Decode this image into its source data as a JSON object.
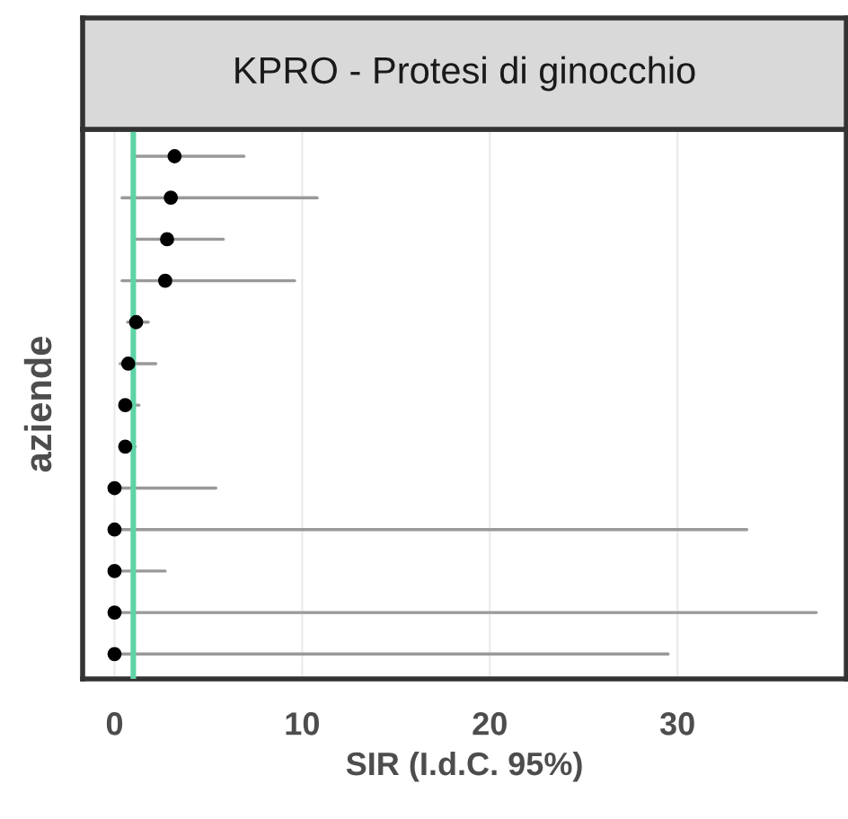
{
  "chart_data": {
    "type": "scatter",
    "orientation": "horizontal",
    "title": "KPRO - Protesi di ginocchio",
    "xlabel": "SIR (I.d.C. 95%)",
    "ylabel": "aziende",
    "categories": [
      null,
      null,
      null,
      null,
      null,
      null,
      null,
      null,
      null,
      null,
      null,
      null,
      null
    ],
    "values": [
      3.2,
      3.0,
      2.8,
      2.7,
      1.15,
      0.73,
      0.57,
      0.57,
      0,
      0,
      0,
      0,
      0
    ],
    "errors": [
      [
        1.1,
        6.9
      ],
      [
        0.4,
        10.8
      ],
      [
        1.1,
        5.8
      ],
      [
        0.4,
        9.6
      ],
      [
        0.7,
        1.8
      ],
      [
        0.3,
        2.2
      ],
      [
        0.3,
        1.3
      ],
      [
        0.3,
        1.1
      ],
      [
        0,
        5.4
      ],
      [
        0,
        33.7
      ],
      [
        0,
        2.7
      ],
      [
        0,
        37.4
      ],
      [
        0,
        29.5
      ]
    ],
    "color": "#000000",
    "marker": "circle",
    "xlim": [
      -1.7,
      39
    ],
    "xticks": [
      0,
      10,
      20,
      30
    ],
    "grid": "x",
    "ref_lines": [
      {
        "axis": "x",
        "value": 1,
        "color": "#5fd3a6"
      }
    ]
  }
}
